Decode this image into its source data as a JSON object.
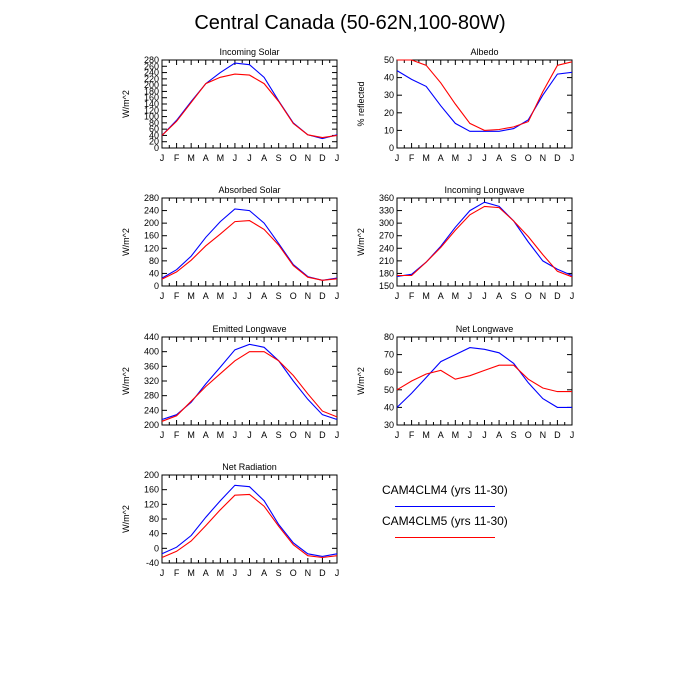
{
  "figure": {
    "title": "Central Canada (50-62N,100-80W)"
  },
  "legend": {
    "items": [
      {
        "label": "CAM4CLM4 (yrs 11-30)",
        "color": "#0000ff"
      },
      {
        "label": "CAM4CLM5 (yrs 11-30)",
        "color": "#ff0000"
      }
    ]
  },
  "chart_data": [
    {
      "type": "line",
      "title": "Incoming Solar",
      "ylabel": "W/m^2",
      "categories": [
        "J",
        "F",
        "M",
        "A",
        "M",
        "J",
        "J",
        "A",
        "S",
        "O",
        "N",
        "D",
        "J"
      ],
      "ylim": [
        0,
        280
      ],
      "yticks": [
        0,
        20,
        40,
        60,
        80,
        100,
        120,
        140,
        160,
        180,
        200,
        220,
        240,
        260,
        280
      ],
      "series": [
        {
          "color": "#0000ff",
          "values": [
            40,
            88,
            148,
            205,
            240,
            270,
            265,
            225,
            150,
            80,
            42,
            30,
            42
          ]
        },
        {
          "color": "#ff0000",
          "values": [
            40,
            85,
            145,
            205,
            225,
            235,
            232,
            205,
            148,
            78,
            42,
            33,
            40
          ]
        }
      ]
    },
    {
      "type": "line",
      "title": "Albedo",
      "ylabel": "% reflected",
      "categories": [
        "J",
        "F",
        "M",
        "A",
        "M",
        "J",
        "J",
        "A",
        "S",
        "O",
        "N",
        "D",
        "J"
      ],
      "ylim": [
        0,
        50
      ],
      "yticks": [
        0,
        10,
        20,
        30,
        40,
        50
      ],
      "series": [
        {
          "color": "#0000ff",
          "values": [
            44,
            39,
            35,
            24,
            14,
            9.5,
            9.5,
            9.5,
            11,
            16,
            30,
            42,
            43
          ]
        },
        {
          "color": "#ff0000",
          "values": [
            50,
            50,
            47,
            37,
            25,
            14,
            10,
            10.5,
            12,
            15,
            32,
            47,
            49
          ]
        }
      ]
    },
    {
      "type": "line",
      "title": "Absorbed Solar",
      "ylabel": "W/m^2",
      "categories": [
        "J",
        "F",
        "M",
        "A",
        "M",
        "J",
        "J",
        "A",
        "S",
        "O",
        "N",
        "D",
        "J"
      ],
      "ylim": [
        0,
        280
      ],
      "yticks": [
        0,
        40,
        80,
        120,
        160,
        200,
        240,
        280
      ],
      "series": [
        {
          "color": "#0000ff",
          "values": [
            25,
            52,
            95,
            155,
            205,
            245,
            240,
            200,
            135,
            68,
            30,
            18,
            25
          ]
        },
        {
          "color": "#ff0000",
          "values": [
            22,
            45,
            82,
            128,
            165,
            205,
            208,
            180,
            130,
            65,
            28,
            18,
            23
          ]
        }
      ]
    },
    {
      "type": "line",
      "title": "Incoming Longwave",
      "ylabel": "W/m^2",
      "categories": [
        "J",
        "F",
        "M",
        "A",
        "M",
        "J",
        "J",
        "A",
        "S",
        "O",
        "N",
        "D",
        "J"
      ],
      "ylim": [
        150,
        360
      ],
      "yticks": [
        150,
        180,
        210,
        240,
        270,
        300,
        330,
        360
      ],
      "series": [
        {
          "color": "#0000ff",
          "values": [
            173,
            178,
            207,
            245,
            290,
            330,
            350,
            340,
            305,
            255,
            210,
            190,
            175
          ]
        },
        {
          "color": "#ff0000",
          "values": [
            175,
            175,
            207,
            242,
            283,
            320,
            340,
            337,
            305,
            268,
            225,
            185,
            172
          ]
        }
      ]
    },
    {
      "type": "line",
      "title": "Emitted Longwave",
      "ylabel": "W/m^2",
      "categories": [
        "J",
        "F",
        "M",
        "A",
        "M",
        "J",
        "J",
        "A",
        "S",
        "O",
        "N",
        "D",
        "J"
      ],
      "ylim": [
        200,
        440
      ],
      "yticks": [
        200,
        240,
        280,
        320,
        360,
        400,
        440
      ],
      "series": [
        {
          "color": "#0000ff",
          "values": [
            215,
            228,
            262,
            312,
            358,
            405,
            420,
            412,
            375,
            320,
            270,
            228,
            215
          ]
        },
        {
          "color": "#ff0000",
          "values": [
            210,
            225,
            265,
            305,
            340,
            375,
            400,
            400,
            375,
            335,
            285,
            238,
            222
          ]
        }
      ]
    },
    {
      "type": "line",
      "title": "Net Longwave",
      "ylabel": "W/m^2",
      "categories": [
        "J",
        "F",
        "M",
        "A",
        "M",
        "J",
        "J",
        "A",
        "S",
        "O",
        "N",
        "D",
        "J"
      ],
      "ylim": [
        30,
        80
      ],
      "yticks": [
        30,
        40,
        50,
        60,
        70,
        80
      ],
      "series": [
        {
          "color": "#0000ff",
          "values": [
            40,
            48,
            57,
            66,
            70,
            74,
            73,
            71,
            65,
            54,
            45,
            40,
            40
          ]
        },
        {
          "color": "#ff0000",
          "values": [
            50,
            55,
            59,
            61,
            56,
            58,
            61,
            64,
            64,
            56,
            51,
            49,
            49
          ]
        }
      ]
    },
    {
      "type": "line",
      "title": "Net Radiation",
      "ylabel": "W/m^2",
      "categories": [
        "J",
        "F",
        "M",
        "A",
        "M",
        "J",
        "J",
        "A",
        "S",
        "O",
        "N",
        "D",
        "J"
      ],
      "ylim": [
        -40,
        200
      ],
      "yticks": [
        -40,
        0,
        40,
        80,
        120,
        160,
        200
      ],
      "series": [
        {
          "color": "#0000ff",
          "values": [
            -15,
            3,
            35,
            85,
            130,
            172,
            168,
            130,
            65,
            15,
            -15,
            -22,
            -15
          ]
        },
        {
          "color": "#ff0000",
          "values": [
            -25,
            -8,
            20,
            62,
            105,
            145,
            147,
            115,
            60,
            10,
            -20,
            -25,
            -20
          ]
        }
      ]
    }
  ]
}
